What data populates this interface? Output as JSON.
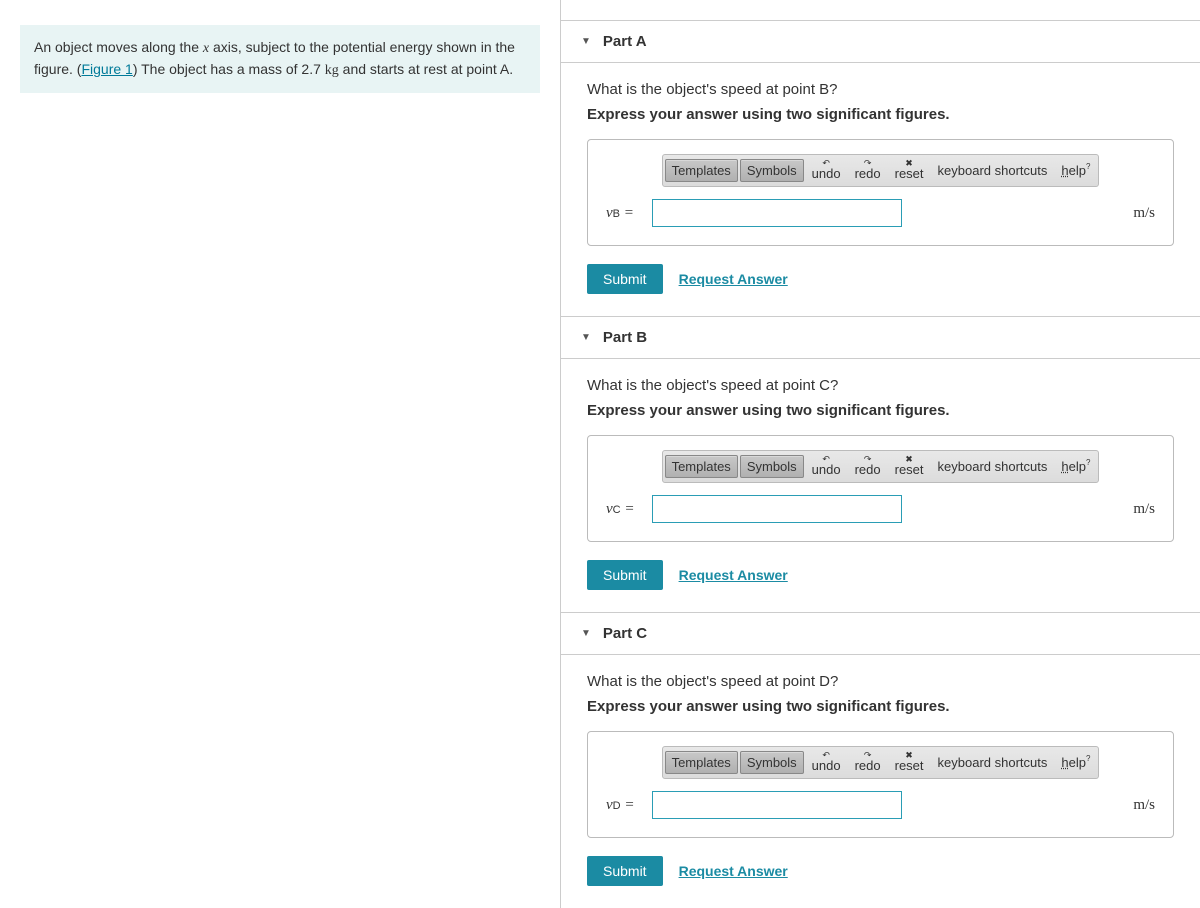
{
  "problem": {
    "text_before_var": "An object moves along the ",
    "axis_var": "x",
    "text_after_var": " axis, subject to the potential energy shown in the figure. (",
    "figure_link": "Figure 1",
    "text_after_link": ") The object has a mass of 2.7 ",
    "mass_unit": "kg",
    "text_end": " and starts at rest at point A."
  },
  "parts": [
    {
      "title": "Part A",
      "question": "What is the object's speed at point B?",
      "instruction": "Express your answer using two significant figures.",
      "var_symbol": "v",
      "var_subscript": "B",
      "equals": " = ",
      "value": "",
      "unit": "m/s"
    },
    {
      "title": "Part B",
      "question": "What is the object's speed at point C?",
      "instruction": "Express your answer using two significant figures.",
      "var_symbol": "v",
      "var_subscript": "C",
      "equals": " = ",
      "value": "",
      "unit": "m/s"
    },
    {
      "title": "Part C",
      "question": "What is the object's speed at point D?",
      "instruction": "Express your answer using two significant figures.",
      "var_symbol": "v",
      "var_subscript": "D",
      "equals": " = ",
      "value": "",
      "unit": "m/s"
    }
  ],
  "toolbar": {
    "templates": "Templates",
    "symbols": "Symbols",
    "undo": "undo",
    "redo": "redo",
    "reset": "reset",
    "keyboard": "keyboard shortcuts",
    "help": "help"
  },
  "actions": {
    "submit": "Submit",
    "request": "Request Answer"
  },
  "colors": {
    "accent": "#1b8ba3",
    "problem_bg": "#e8f4f4",
    "input_border": "#2a9db5",
    "border": "#ccc"
  }
}
